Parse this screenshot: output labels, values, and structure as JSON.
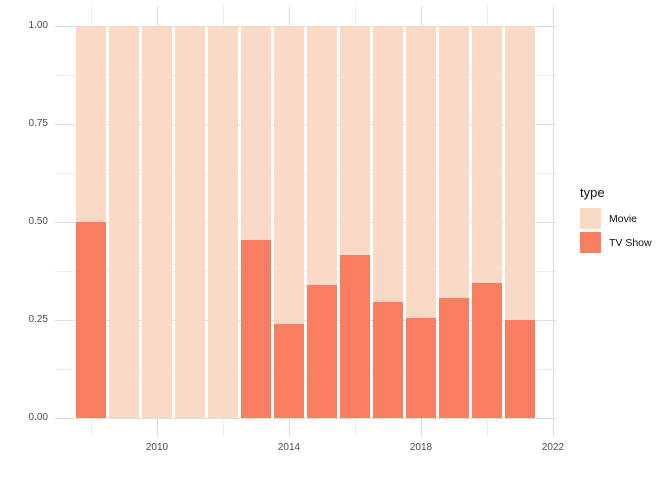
{
  "chart_data": {
    "type": "bar",
    "subtype": "stacked-fill",
    "title": "",
    "xlabel": "",
    "ylabel": "",
    "x": [
      2008,
      2009,
      2010,
      2011,
      2012,
      2013,
      2014,
      2015,
      2016,
      2017,
      2018,
      2019,
      2020,
      2021
    ],
    "series": [
      {
        "name": "Movie",
        "color": "#FBD9C7",
        "values": [
          0.5,
          1.0,
          1.0,
          1.0,
          1.0,
          0.545,
          0.76,
          0.66,
          0.585,
          0.705,
          0.745,
          0.695,
          0.655,
          0.75
        ]
      },
      {
        "name": "TV Show",
        "color": "#F87E5F",
        "values": [
          0.5,
          0.0,
          0.0,
          0.0,
          0.0,
          0.455,
          0.24,
          0.34,
          0.415,
          0.295,
          0.255,
          0.305,
          0.345,
          0.25
        ]
      }
    ],
    "x_axis": {
      "major_ticks": [
        2010,
        2014,
        2018,
        2022
      ],
      "major_tick_labels": [
        "2010",
        "2014",
        "2018",
        "2022"
      ],
      "minor_ticks": [
        2008,
        2012,
        2016,
        2020
      ],
      "range": [
        2006.9,
        2022.1
      ]
    },
    "y_axis": {
      "major_ticks": [
        0,
        0.25,
        0.5,
        0.75,
        1.0
      ],
      "major_tick_labels": [
        "0.00",
        "0.25",
        "0.50",
        "0.75",
        "1.00"
      ],
      "minor_ticks": [
        0.125,
        0.375,
        0.625,
        0.875
      ],
      "range": [
        -0.05,
        1.05
      ]
    },
    "grid": "on",
    "legend_position": "right"
  },
  "legend": {
    "title": "type",
    "entries": [
      {
        "label": "Movie",
        "color": "#FBD9C7"
      },
      {
        "label": "TV Show",
        "color": "#F87E5F"
      }
    ]
  },
  "colors": {
    "background": "#FFFFFF",
    "grid_major": "#DEDEDE",
    "grid_minor": "#EDEDED",
    "axis_text": "#4D4D4D",
    "legend_text": "#111111"
  }
}
